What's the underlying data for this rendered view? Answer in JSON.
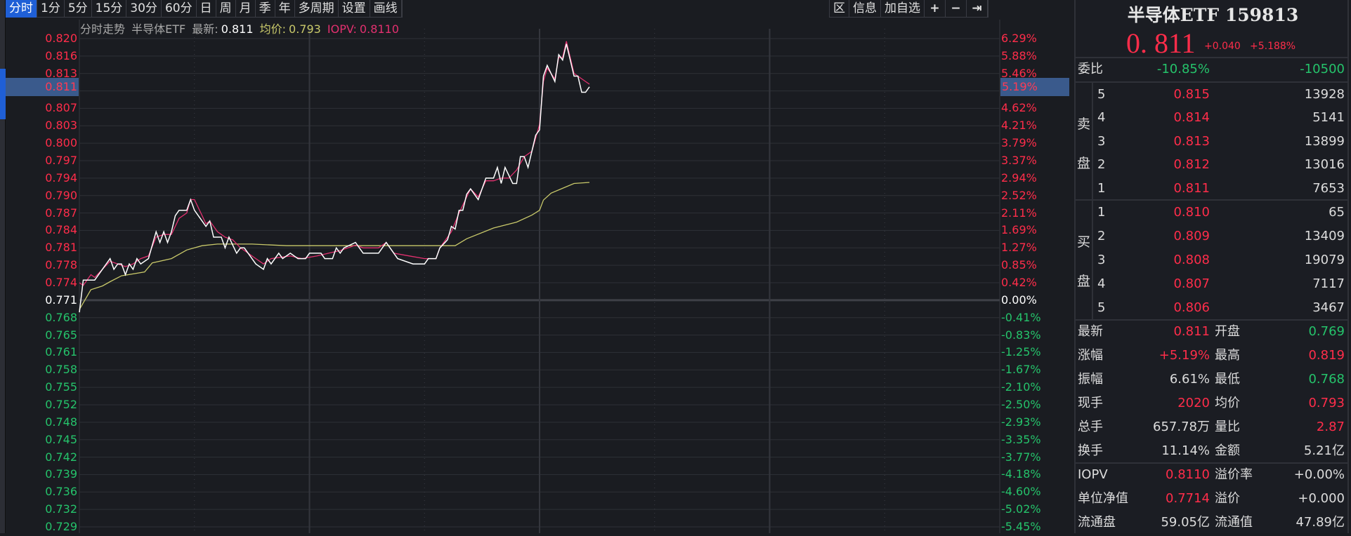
{
  "toolbar": {
    "tabs": [
      "分时",
      "1分",
      "5分",
      "15分",
      "30分",
      "60分",
      "日",
      "周",
      "月",
      "季",
      "年",
      "多周期",
      "设置",
      "画线"
    ],
    "active": 0,
    "right": [
      "区",
      "信息",
      "加自选",
      "+",
      "−",
      "⇥"
    ],
    "right_icons": [
      "range-icon",
      "info-icon",
      "add-watchlist-icon",
      "zoom-in-icon",
      "zoom-out-icon",
      "jump-end-icon"
    ]
  },
  "header": {
    "mode": "分时走势",
    "name": "半导体ETF",
    "latest_label": "最新:",
    "latest": "0.811",
    "avg_label": "均价:",
    "avg": "0.793",
    "iopv_label": "IOPV:",
    "iopv": "0.8110"
  },
  "colors": {
    "up": "#ff2d4a",
    "down": "#25c36b",
    "price_line": "#ffffff",
    "avg_line": "#c9c96a",
    "iopv_line": "#e3306f",
    "highlight": "#3a5a8c",
    "accent": "#1f5fd6"
  },
  "chart_data": {
    "type": "line",
    "prev_close": 0.771,
    "ylim": [
      0.729,
      0.82
    ],
    "xlim_minutes": [
      0,
      240
    ],
    "grid": true,
    "left_ticks": [
      "0.820",
      "0.816",
      "0.813",
      "0.807",
      "0.803",
      "0.800",
      "0.797",
      "0.794",
      "0.790",
      "0.787",
      "0.784",
      "0.781",
      "0.778",
      "0.774",
      "0.771",
      "0.768",
      "0.765",
      "0.761",
      "0.758",
      "0.755",
      "0.752",
      "0.748",
      "0.745",
      "0.742",
      "0.739",
      "0.736",
      "0.732",
      "0.729"
    ],
    "right_ticks": [
      "6.29%",
      "5.88%",
      "5.46%",
      "4.62%",
      "4.21%",
      "3.79%",
      "3.37%",
      "2.94%",
      "2.52%",
      "2.11%",
      "1.69%",
      "1.27%",
      "0.85%",
      "0.42%",
      "0.00%",
      "-0.41%",
      "-0.83%",
      "-1.25%",
      "-1.67%",
      "-2.10%",
      "-2.50%",
      "-2.93%",
      "-3.35%",
      "-3.77%",
      "-4.18%",
      "-4.60%",
      "-5.02%",
      "-5.45%"
    ],
    "current_price_label": "0.811",
    "current_pct_label": "5.19%",
    "current_price": 0.811,
    "series": [
      {
        "key": "price",
        "points": [
          [
            0,
            0.769
          ],
          [
            1,
            0.775
          ],
          [
            4,
            0.775
          ],
          [
            8,
            0.779
          ],
          [
            9,
            0.777
          ],
          [
            10,
            0.778
          ],
          [
            11,
            0.778
          ],
          [
            12,
            0.776
          ],
          [
            13,
            0.778
          ],
          [
            14,
            0.777
          ],
          [
            15,
            0.779
          ],
          [
            16,
            0.778
          ],
          [
            18,
            0.779
          ],
          [
            20,
            0.784
          ],
          [
            21,
            0.782
          ],
          [
            22,
            0.784
          ],
          [
            23,
            0.782
          ],
          [
            24,
            0.784
          ],
          [
            25,
            0.787
          ],
          [
            26,
            0.788
          ],
          [
            28,
            0.788
          ],
          [
            29,
            0.79
          ],
          [
            30,
            0.788
          ],
          [
            33,
            0.785
          ],
          [
            34,
            0.786
          ],
          [
            35,
            0.783
          ],
          [
            37,
            0.783
          ],
          [
            38,
            0.781
          ],
          [
            39,
            0.783
          ],
          [
            41,
            0.78
          ],
          [
            42,
            0.781
          ],
          [
            43,
            0.781
          ],
          [
            46,
            0.778
          ],
          [
            48,
            0.777
          ],
          [
            49,
            0.779
          ],
          [
            50,
            0.778
          ],
          [
            52,
            0.78
          ],
          [
            53,
            0.779
          ],
          [
            55,
            0.78
          ],
          [
            57,
            0.779
          ],
          [
            59,
            0.779
          ],
          [
            60,
            0.78
          ],
          [
            63,
            0.78
          ],
          [
            64,
            0.779
          ],
          [
            66,
            0.779
          ],
          [
            67,
            0.781
          ],
          [
            68,
            0.78
          ],
          [
            69,
            0.781
          ],
          [
            72,
            0.782
          ],
          [
            74,
            0.78
          ],
          [
            78,
            0.78
          ],
          [
            80,
            0.782
          ],
          [
            83,
            0.779
          ],
          [
            87,
            0.778
          ],
          [
            90,
            0.778
          ],
          [
            91,
            0.779
          ],
          [
            93,
            0.779
          ],
          [
            94,
            0.781
          ],
          [
            96,
            0.7825
          ],
          [
            97,
            0.785
          ],
          [
            98,
            0.7845
          ],
          [
            99,
            0.788
          ],
          [
            100,
            0.788
          ],
          [
            101,
            0.791
          ],
          [
            102,
            0.792
          ],
          [
            104,
            0.79
          ],
          [
            106,
            0.794
          ],
          [
            108,
            0.794
          ],
          [
            109,
            0.796
          ],
          [
            110,
            0.793
          ],
          [
            111,
            0.796
          ],
          [
            113,
            0.793
          ],
          [
            114,
            0.793
          ],
          [
            115,
            0.798
          ],
          [
            116,
            0.798
          ],
          [
            117,
            0.796
          ],
          [
            119,
            0.802
          ],
          [
            120,
            0.803
          ],
          [
            121,
            0.813
          ],
          [
            122,
            0.815
          ],
          [
            124,
            0.812
          ],
          [
            125,
            0.817
          ],
          [
            126,
            0.816
          ],
          [
            127,
            0.819
          ],
          [
            128,
            0.816
          ],
          [
            129,
            0.813
          ],
          [
            130,
            0.813
          ],
          [
            131,
            0.81
          ],
          [
            132,
            0.81
          ],
          [
            133,
            0.811
          ]
        ]
      },
      {
        "key": "iopv",
        "points": [
          [
            0,
            0.7745
          ],
          [
            1,
            0.774
          ],
          [
            3,
            0.776
          ],
          [
            4,
            0.7755
          ],
          [
            8,
            0.7785
          ],
          [
            10,
            0.778
          ],
          [
            12,
            0.7775
          ],
          [
            14,
            0.778
          ],
          [
            16,
            0.779
          ],
          [
            18,
            0.7795
          ],
          [
            20,
            0.783
          ],
          [
            22,
            0.7835
          ],
          [
            24,
            0.7835
          ],
          [
            26,
            0.7865
          ],
          [
            28,
            0.7875
          ],
          [
            29,
            0.79
          ],
          [
            30,
            0.79
          ],
          [
            32,
            0.787
          ],
          [
            33,
            0.7855
          ],
          [
            34,
            0.786
          ],
          [
            36,
            0.784
          ],
          [
            37,
            0.7835
          ],
          [
            38,
            0.783
          ],
          [
            40,
            0.7825
          ],
          [
            42,
            0.781
          ],
          [
            44,
            0.78
          ],
          [
            46,
            0.779
          ],
          [
            48,
            0.778
          ],
          [
            50,
            0.779
          ],
          [
            55,
            0.7795
          ],
          [
            58,
            0.779
          ],
          [
            62,
            0.7795
          ],
          [
            65,
            0.78
          ],
          [
            68,
            0.7805
          ],
          [
            70,
            0.781
          ],
          [
            72,
            0.7815
          ],
          [
            74,
            0.781
          ],
          [
            78,
            0.781
          ],
          [
            80,
            0.782
          ],
          [
            82,
            0.78
          ],
          [
            86,
            0.7795
          ],
          [
            90,
            0.779
          ],
          [
            93,
            0.779
          ],
          [
            94,
            0.781
          ],
          [
            97,
            0.784
          ],
          [
            99,
            0.7875
          ],
          [
            102,
            0.792
          ],
          [
            104,
            0.7905
          ],
          [
            106,
            0.7935
          ],
          [
            108,
            0.7935
          ],
          [
            110,
            0.794
          ],
          [
            112,
            0.794
          ],
          [
            114,
            0.7955
          ],
          [
            116,
            0.798
          ],
          [
            118,
            0.799
          ],
          [
            120,
            0.804
          ],
          [
            121,
            0.812
          ],
          [
            122,
            0.8145
          ],
          [
            124,
            0.8125
          ],
          [
            125,
            0.8165
          ],
          [
            126,
            0.8165
          ],
          [
            127,
            0.8195
          ],
          [
            129,
            0.8135
          ],
          [
            131,
            0.8125
          ],
          [
            133,
            0.8115
          ]
        ]
      },
      {
        "key": "avg",
        "points": [
          [
            0,
            0.7695
          ],
          [
            3,
            0.7732
          ],
          [
            6,
            0.7739
          ],
          [
            8,
            0.7747
          ],
          [
            11,
            0.7758
          ],
          [
            17,
            0.7765
          ],
          [
            19,
            0.7782
          ],
          [
            24,
            0.779
          ],
          [
            28,
            0.7806
          ],
          [
            32,
            0.7814
          ],
          [
            36,
            0.7817
          ],
          [
            45,
            0.7817
          ],
          [
            54,
            0.7814
          ],
          [
            98,
            0.7814
          ],
          [
            101,
            0.7827
          ],
          [
            108,
            0.7847
          ],
          [
            114,
            0.7858
          ],
          [
            118,
            0.7871
          ],
          [
            120,
            0.788
          ],
          [
            121,
            0.7899
          ],
          [
            123,
            0.7912
          ],
          [
            126,
            0.7921
          ],
          [
            129,
            0.793
          ],
          [
            133,
            0.7932
          ]
        ]
      }
    ]
  },
  "panel": {
    "title": "半导体ETF 159813",
    "price": "0. 811",
    "change": "+0.040",
    "change_pct": "+5.188%",
    "weibi": {
      "label": "委比",
      "pct": "-10.85%",
      "diff": "-10500"
    },
    "sell_label": [
      "卖",
      "盘"
    ],
    "buy_label": [
      "买",
      "盘"
    ],
    "sell": [
      {
        "lvl": "5",
        "price": "0.815",
        "vol": "13928"
      },
      {
        "lvl": "4",
        "price": "0.814",
        "vol": "5141"
      },
      {
        "lvl": "3",
        "price": "0.813",
        "vol": "13899"
      },
      {
        "lvl": "2",
        "price": "0.812",
        "vol": "13016"
      },
      {
        "lvl": "1",
        "price": "0.811",
        "vol": "7653"
      }
    ],
    "buy": [
      {
        "lvl": "1",
        "price": "0.810",
        "vol": "65"
      },
      {
        "lvl": "2",
        "price": "0.809",
        "vol": "13409"
      },
      {
        "lvl": "3",
        "price": "0.808",
        "vol": "19079"
      },
      {
        "lvl": "4",
        "price": "0.807",
        "vol": "7117"
      },
      {
        "lvl": "5",
        "price": "0.806",
        "vol": "3467"
      }
    ],
    "stats": [
      {
        "l1": "最新",
        "v1": "0.811",
        "c1": "red",
        "l2": "开盘",
        "v2": "0.769",
        "c2": "green"
      },
      {
        "l1": "涨幅",
        "v1": "+5.19%",
        "c1": "red",
        "l2": "最高",
        "v2": "0.819",
        "c2": "red"
      },
      {
        "l1": "振幅",
        "v1": "6.61%",
        "c1": "wt",
        "l2": "最低",
        "v2": "0.768",
        "c2": "green"
      },
      {
        "l1": "现手",
        "v1": "2020",
        "c1": "red",
        "l2": "均价",
        "v2": "0.793",
        "c2": "red"
      },
      {
        "l1": "总手",
        "v1": "657.78万",
        "c1": "wt",
        "l2": "量比",
        "v2": "2.87",
        "c2": "red"
      },
      {
        "l1": "换手",
        "v1": "11.14%",
        "c1": "wt",
        "l2": "金额",
        "v2": "5.21亿",
        "c2": "wt"
      }
    ],
    "fund": [
      {
        "l1": "IOPV",
        "v1": "0.8110",
        "c1": "red",
        "l2": "溢价率",
        "v2": "+0.00%",
        "c2": "wt"
      },
      {
        "l1": "单位净值",
        "v1": "0.7714",
        "c1": "red",
        "l2": "溢价",
        "v2": "+0.000",
        "c2": "wt"
      },
      {
        "l1": "流通盘",
        "v1": "59.05亿",
        "c1": "wt",
        "l2": "流通值",
        "v2": "47.89亿",
        "c2": "wt"
      }
    ]
  }
}
